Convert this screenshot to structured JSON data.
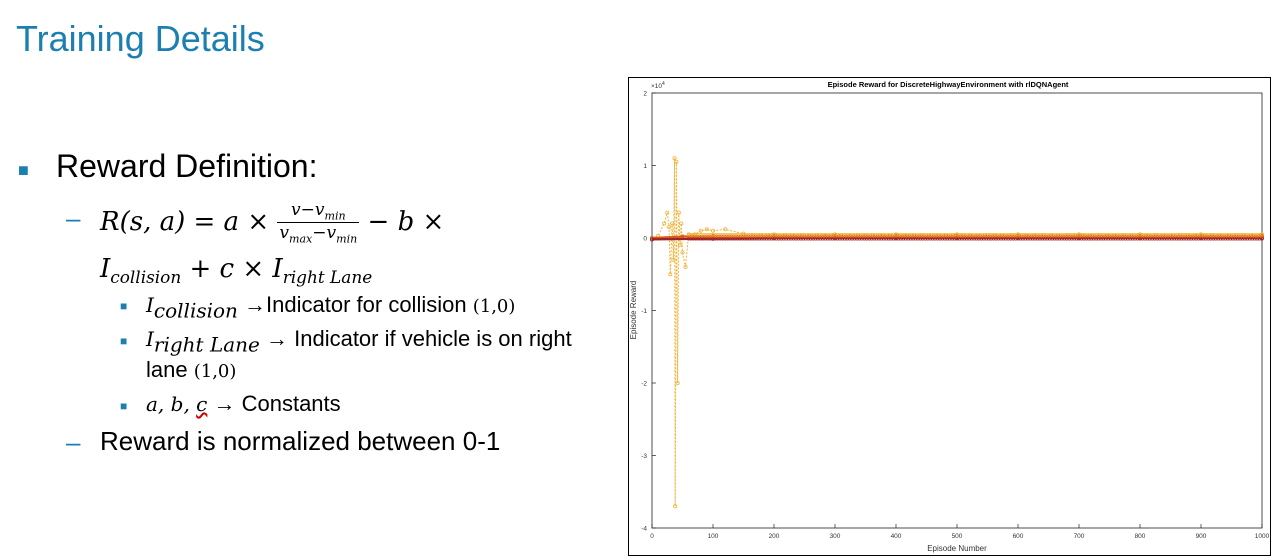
{
  "slide": {
    "title": "Training Details",
    "bullet1": "Reward Definition:",
    "eq_line1_lhs": "R(s, a) = a ×",
    "eq_frac_num": "v−v",
    "eq_frac_num_sub": "min",
    "eq_frac_den_a": "v",
    "eq_frac_den_a_sub": "max",
    "eq_frac_den_b": "−v",
    "eq_frac_den_b_sub": "min",
    "eq_line1_rhs": "− b ×",
    "eq_line2_a": "I",
    "eq_line2_a_sub": "collision",
    "eq_line2_mid": " + c × I",
    "eq_line2_b_sub": "right Lane",
    "sub1_var": "I",
    "sub1_var_sub": "collision",
    "sub1_text": "→Indicator for collision",
    "sub1_paren": "(1,0)",
    "sub2_var": "I",
    "sub2_var_sub": "right Lane",
    "sub2_text": "→ Indicator if vehicle is on right",
    "sub2_text2": "lane",
    "sub2_paren": "(1,0)",
    "sub3_var_ab": "a, b, ",
    "sub3_var_c": "c",
    "sub3_text": "→ Constants",
    "bullet2": "Reward is normalized between 0-1"
  },
  "chart_data": {
    "type": "line",
    "title": "Episode Reward for DiscreteHighwayEnvironment with rlDQNAgent",
    "xlabel": "Episode Number",
    "ylabel": "Episode Reward",
    "exponent_label": "×10",
    "exponent_power": "4",
    "xlim": [
      0,
      1000
    ],
    "ylim": [
      -4,
      2
    ],
    "y_scale_note": "values in units of 10^4",
    "xticks": [
      "0",
      "100",
      "200",
      "300",
      "400",
      "500",
      "600",
      "700",
      "800",
      "900",
      "1000"
    ],
    "yticks": [
      "-4",
      "-3",
      "-2",
      "-1",
      "0",
      "1",
      "2"
    ],
    "grid": false,
    "colors": {
      "episode_reward": "#f0b43a",
      "average_reward": "#d85a1a",
      "episode_q0": "#9b2226"
    },
    "series": [
      {
        "key": "episode_reward",
        "x": [
          0,
          10,
          20,
          25,
          28,
          30,
          33,
          35,
          37,
          38,
          40,
          42,
          44,
          46,
          48,
          50,
          55,
          60,
          70,
          80,
          90,
          100,
          120,
          150,
          200,
          300,
          400,
          500,
          600,
          700,
          800,
          900,
          1000
        ],
        "values": [
          0,
          0.03,
          0.2,
          0.35,
          0.15,
          -0.5,
          0.2,
          -0.3,
          1.1,
          -3.7,
          1.05,
          -2.0,
          0.35,
          -0.1,
          0.2,
          -0.2,
          -0.4,
          0.05,
          0.05,
          0.1,
          0.12,
          0.1,
          0.12,
          0.06,
          0.05,
          0.05,
          0.05,
          0.05,
          0.05,
          0.05,
          0.05,
          0.05,
          0.05
        ]
      },
      {
        "key": "average_reward",
        "x": [
          0,
          50,
          100,
          200,
          300,
          400,
          500,
          600,
          700,
          800,
          900,
          1000
        ],
        "values": [
          0,
          0.02,
          0.03,
          0.03,
          0.03,
          0.03,
          0.03,
          0.03,
          0.03,
          0.03,
          0.03,
          0.03
        ]
      },
      {
        "key": "episode_q0",
        "x": [
          0,
          100,
          200,
          300,
          400,
          500,
          600,
          700,
          800,
          900,
          1000
        ],
        "values": [
          -0.02,
          -0.01,
          0,
          0,
          0,
          0,
          0,
          0,
          0,
          0,
          0
        ]
      }
    ]
  }
}
